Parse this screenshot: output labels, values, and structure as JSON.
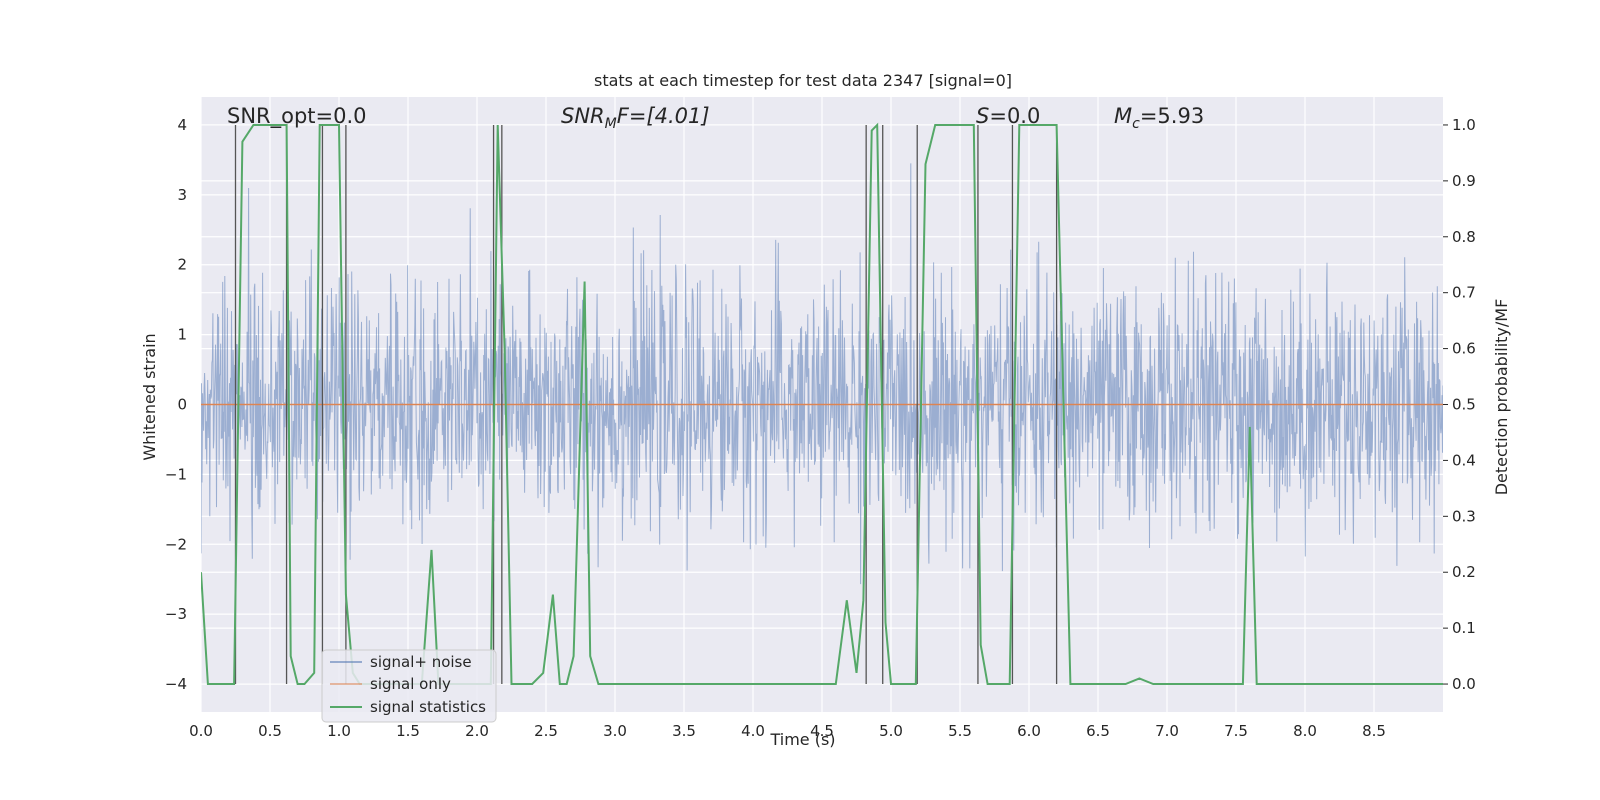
{
  "chart_data": {
    "type": "line",
    "title": "stats at each timestep for test data 2347 [signal=0]",
    "xlabel": "Time (s)",
    "ylabel_left": "Whitened strain",
    "ylabel_right": "Detection probability/MF",
    "xlim": [
      0.0,
      9.0
    ],
    "ylim_left": [
      -4.4,
      4.4
    ],
    "ylim_right": [
      -0.05,
      1.05
    ],
    "xticks": [
      0.0,
      0.5,
      1.0,
      1.5,
      2.0,
      2.5,
      3.0,
      3.5,
      4.0,
      4.5,
      5.0,
      5.5,
      6.0,
      6.5,
      7.0,
      7.5,
      8.0,
      8.5
    ],
    "xtick_labels": [
      "0.0",
      "0.5",
      "1.0",
      "1.5",
      "2.0",
      "2.5",
      "3.0",
      "3.5",
      "4.0",
      "4.5",
      "5.0",
      "5.5",
      "6.0",
      "6.5",
      "7.0",
      "7.5",
      "8.0",
      "8.5"
    ],
    "yticks_left": [
      -4,
      -3,
      -2,
      -1,
      0,
      1,
      2,
      3,
      4
    ],
    "ytick_labels_left": [
      "−4",
      "−3",
      "−2",
      "−1",
      "0",
      "1",
      "2",
      "3",
      "4"
    ],
    "yticks_right": [
      0.0,
      0.1,
      0.2,
      0.3,
      0.4,
      0.5,
      0.6,
      0.7,
      0.8,
      0.9,
      1.0
    ],
    "ytick_labels_right": [
      "0.0",
      "0.1",
      "0.2",
      "0.3",
      "0.4",
      "0.5",
      "0.6",
      "0.7",
      "0.8",
      "0.9",
      "1.0"
    ],
    "grid": true,
    "legend_position": "bottom-left",
    "annotations": {
      "snr_opt": "SNR_opt=0.0",
      "snr_mf_prefix": "SNR",
      "snr_mf_sub": "M",
      "snr_mf_suffix": "F=[4.01]",
      "s_label": "S",
      "s_value": "=0.0",
      "mc_label": "M",
      "mc_sub": "c",
      "mc_value": "=5.93"
    },
    "series": [
      {
        "name": "signal+ noise",
        "color": "#4c72b0",
        "style": "dense noise trace, std ~0.8, amplitude up to ~±3.5"
      },
      {
        "name": "signal only",
        "color": "#dd8452",
        "values_constant": 0
      },
      {
        "name": "signal statistics",
        "color": "#55a868",
        "axis": "right",
        "x": [
          0.0,
          0.05,
          0.1,
          0.2,
          0.24,
          0.3,
          0.38,
          0.45,
          0.55,
          0.62,
          0.65,
          0.7,
          0.75,
          0.82,
          0.86,
          0.88,
          0.92,
          1.0,
          1.05,
          1.1,
          1.15,
          1.2,
          1.3,
          1.4,
          1.5,
          1.6,
          1.67,
          1.72,
          1.8,
          1.9,
          2.0,
          2.1,
          2.15,
          2.2,
          2.25,
          2.3,
          2.4,
          2.48,
          2.55,
          2.6,
          2.65,
          2.7,
          2.78,
          2.82,
          2.88,
          2.95,
          3.0,
          3.5,
          4.0,
          4.5,
          4.6,
          4.68,
          4.75,
          4.8,
          4.86,
          4.9,
          4.96,
          5.0,
          5.07,
          5.18,
          5.25,
          5.32,
          5.45,
          5.6,
          5.65,
          5.7,
          5.8,
          5.86,
          5.93,
          6.0,
          6.1,
          6.2,
          6.3,
          6.4,
          6.6,
          6.7,
          6.8,
          6.9,
          6.95,
          7.0,
          7.3,
          7.55,
          7.6,
          7.65,
          7.7,
          7.9,
          8.2,
          8.5,
          8.8,
          9.0
        ],
        "y": [
          0.2,
          0.0,
          0.0,
          0.0,
          0.0,
          0.97,
          1.0,
          1.0,
          1.0,
          1.0,
          0.05,
          0.0,
          0.0,
          0.02,
          1.0,
          1.0,
          1.0,
          1.0,
          0.16,
          0.02,
          0.0,
          0.0,
          0.0,
          0.0,
          0.0,
          0.0,
          0.24,
          0.0,
          0.0,
          0.0,
          0.0,
          0.0,
          1.0,
          0.6,
          0.0,
          0.0,
          0.0,
          0.02,
          0.16,
          0.0,
          0.0,
          0.05,
          0.72,
          0.05,
          0.0,
          0.0,
          0.0,
          0.0,
          0.0,
          0.0,
          0.0,
          0.15,
          0.02,
          0.15,
          0.99,
          1.0,
          0.11,
          0.0,
          0.0,
          0.0,
          0.93,
          1.0,
          1.0,
          1.0,
          0.07,
          0.0,
          0.0,
          0.0,
          1.0,
          1.0,
          1.0,
          1.0,
          0.0,
          0.0,
          0.0,
          0.0,
          0.01,
          0.0,
          0.0,
          0.0,
          0.0,
          0.0,
          0.46,
          0.0,
          0.0,
          0.0,
          0.0,
          0.0,
          0.0,
          0.0
        ]
      }
    ],
    "vertical_markers_x": [
      0.25,
      0.62,
      0.88,
      1.05,
      2.12,
      2.18,
      4.82,
      4.94,
      5.19,
      5.63,
      5.88,
      6.2
    ],
    "legend": [
      {
        "label": "signal+ noise",
        "color": "#4c72b0"
      },
      {
        "label": "signal only",
        "color": "#dd8452"
      },
      {
        "label": "signal statistics",
        "color": "#55a868"
      }
    ]
  }
}
